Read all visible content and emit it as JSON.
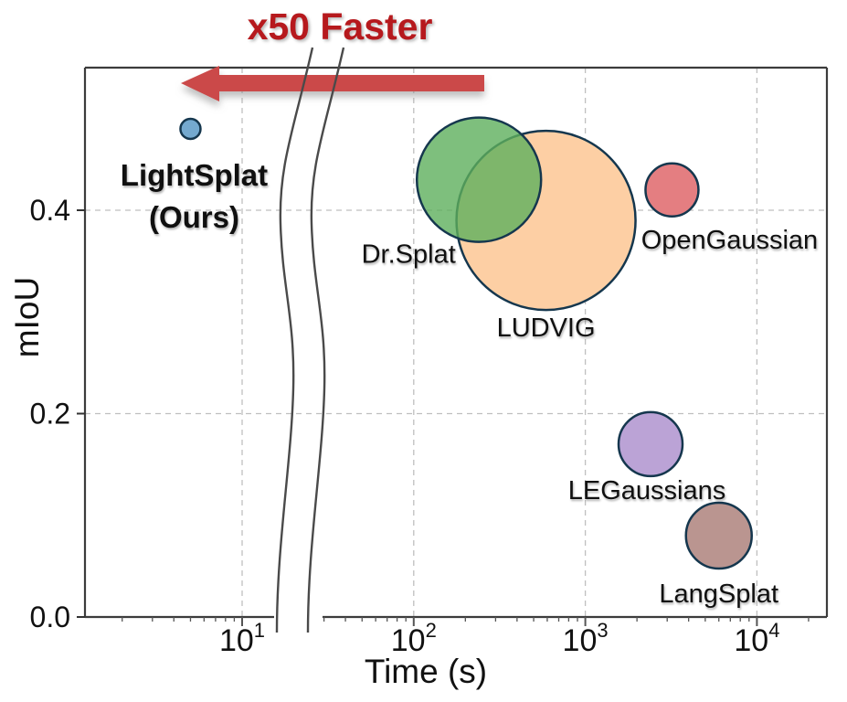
{
  "figure": {
    "title": "x50 Faster",
    "x_axis_label": "Time (s)",
    "y_axis_label": "mIoU"
  },
  "axes": {
    "x_tick_base": "10",
    "x_tick_exponents": [
      "1",
      "2",
      "3",
      "4"
    ],
    "y_tick_labels": [
      "0.0",
      "0.2",
      "0.4"
    ],
    "y_tick_values": [
      0,
      0.2,
      0.4
    ]
  },
  "style_colors": {
    "title_red": "#b6191d",
    "arrow_red": "#cb4a48",
    "bubble_stroke": "#15374e",
    "grid": "#bfbfbf",
    "axis": "#3c3c3c",
    "break_line": "#4a4a4a"
  },
  "chart_data": {
    "type": "scatter",
    "title": "x50 Faster",
    "xlabel": "Time (s)",
    "ylabel": "mIoU",
    "x_scale": "log",
    "x_axis_break_between": [
      15,
      40
    ],
    "xlim": [
      1.2,
      25000
    ],
    "ylim": [
      0.0,
      0.54
    ],
    "grid": "dashed",
    "x_gridlines": [
      10,
      100,
      1000,
      10000
    ],
    "y_gridlines": [
      0.2,
      0.4
    ],
    "legend_position": "none (direct point labels)",
    "points": [
      {
        "id": "lightsplat",
        "label": "LightSplat",
        "sublabel": "(Ours)",
        "time_s": 5,
        "miou": 0.48,
        "bubble_radius_px": 11,
        "fill": "#74a9cf",
        "fill_opacity": 1
      },
      {
        "id": "ludvig",
        "label": "LUDVIG",
        "sublabel": "",
        "time_s": 590,
        "miou": 0.39,
        "bubble_radius_px": 98,
        "fill": "#fdcfa4",
        "fill_opacity": 1
      },
      {
        "id": "drsplat",
        "label": "Dr.Splat",
        "sublabel": "",
        "time_s": 240,
        "miou": 0.43,
        "bubble_radius_px": 68,
        "fill": "#5eaf5c",
        "fill_opacity": 0.8
      },
      {
        "id": "opengaussian",
        "label": "OpenGaussian",
        "sublabel": "",
        "time_s": 3200,
        "miou": 0.42,
        "bubble_radius_px": 29,
        "fill": "#e47e81",
        "fill_opacity": 1
      },
      {
        "id": "legaussians",
        "label": "LEGaussians",
        "sublabel": "",
        "time_s": 2400,
        "miou": 0.17,
        "bubble_radius_px": 35,
        "fill": "#bba3d6",
        "fill_opacity": 1
      },
      {
        "id": "langsplat",
        "label": "LangSplat",
        "sublabel": "",
        "time_s": 6000,
        "miou": 0.08,
        "bubble_radius_px": 36,
        "fill": "#ba9590",
        "fill_opacity": 1
      }
    ],
    "annotation": {
      "text": "x50 Faster",
      "shape": "left-arrow",
      "color": "#cb4a48"
    }
  }
}
